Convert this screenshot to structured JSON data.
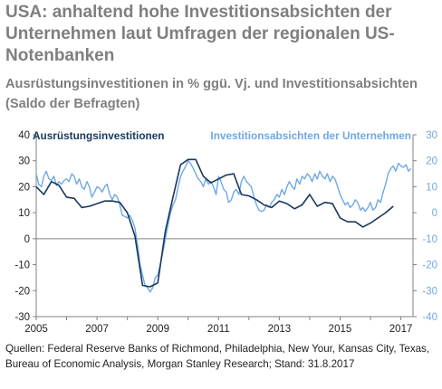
{
  "title": "USA: anhaltend hohe Investitionsabsichten der Unternehmen laut Umfragen der regionalen US-Notenbanken",
  "subtitle": "Ausrüstungsinvestitionen in % ggü. Vj. und Investitionsabsichten (Saldo der Befragten)",
  "source": "Quellen: Federal Reserve Banks of Richmond, Philadelphia, New Your, Kansas City, Texas, Bureau of Economic Analysis, Morgan Stanley Research; Stand: 31.8.2017",
  "colors": {
    "dark": "#17375e",
    "light": "#6fa8e4",
    "axis": "#808080"
  },
  "chart_data": {
    "type": "line",
    "x_ticks": [
      "2005",
      "2007",
      "2009",
      "2011",
      "2013",
      "2015",
      "2017"
    ],
    "y_left_ticks": [
      "40",
      "30",
      "20",
      "10",
      "0",
      "-10",
      "-20",
      "-30"
    ],
    "y_right_ticks": [
      "30",
      "20",
      "10",
      "0",
      "-10",
      "-20",
      "-30",
      "-40"
    ],
    "ylim_left": [
      -30,
      40
    ],
    "ylim_right": [
      -40,
      30
    ],
    "xlim": [
      2005,
      2017.4
    ],
    "series": [
      {
        "name": "Ausrüstungsinvestitionen",
        "axis": "left",
        "color": "#17375e",
        "points": [
          [
            2005.0,
            20
          ],
          [
            2005.25,
            17
          ],
          [
            2005.5,
            22
          ],
          [
            2005.75,
            20.5
          ],
          [
            2006.0,
            16
          ],
          [
            2006.25,
            15.5
          ],
          [
            2006.5,
            12
          ],
          [
            2006.75,
            12.5
          ],
          [
            2007.0,
            13.5
          ],
          [
            2007.25,
            14.5
          ],
          [
            2007.5,
            14.5
          ],
          [
            2007.75,
            14
          ],
          [
            2008.0,
            10
          ],
          [
            2008.25,
            1
          ],
          [
            2008.5,
            -18
          ],
          [
            2008.75,
            -18.5
          ],
          [
            2009.0,
            -17
          ],
          [
            2009.25,
            3
          ],
          [
            2009.5,
            16
          ],
          [
            2009.75,
            28.5
          ],
          [
            2010.0,
            30.5
          ],
          [
            2010.25,
            30.5
          ],
          [
            2010.5,
            24
          ],
          [
            2010.75,
            21.5
          ],
          [
            2011.0,
            23
          ],
          [
            2011.25,
            24.5
          ],
          [
            2011.5,
            25
          ],
          [
            2011.75,
            17
          ],
          [
            2012.0,
            16.5
          ],
          [
            2012.25,
            15
          ],
          [
            2012.5,
            13
          ],
          [
            2012.75,
            12
          ],
          [
            2013.0,
            14.5
          ],
          [
            2013.25,
            13.5
          ],
          [
            2013.5,
            11.5
          ],
          [
            2013.75,
            13
          ],
          [
            2014.0,
            17
          ],
          [
            2014.25,
            12.5
          ],
          [
            2014.5,
            14
          ],
          [
            2014.75,
            13.5
          ],
          [
            2015.0,
            8
          ],
          [
            2015.25,
            6.5
          ],
          [
            2015.5,
            6.5
          ],
          [
            2015.75,
            4.5
          ],
          [
            2016.0,
            6
          ],
          [
            2016.25,
            8
          ],
          [
            2016.5,
            10
          ],
          [
            2016.75,
            12.5
          ]
        ]
      },
      {
        "name": "Investitionsabsichten der Unternehmen",
        "axis": "right",
        "color": "#6fa8e4",
        "points": [
          [
            2005.0,
            15
          ],
          [
            2005.08,
            11
          ],
          [
            2005.17,
            10
          ],
          [
            2005.25,
            14
          ],
          [
            2005.33,
            16
          ],
          [
            2005.42,
            13
          ],
          [
            2005.5,
            12.5
          ],
          [
            2005.58,
            14
          ],
          [
            2005.67,
            10.5
          ],
          [
            2005.75,
            12
          ],
          [
            2005.83,
            11
          ],
          [
            2005.92,
            12.5
          ],
          [
            2006.0,
            13
          ],
          [
            2006.08,
            12
          ],
          [
            2006.17,
            15
          ],
          [
            2006.25,
            14
          ],
          [
            2006.33,
            11
          ],
          [
            2006.42,
            13
          ],
          [
            2006.5,
            10
          ],
          [
            2006.58,
            9
          ],
          [
            2006.67,
            12
          ],
          [
            2006.75,
            10
          ],
          [
            2006.83,
            6
          ],
          [
            2006.92,
            8
          ],
          [
            2007.0,
            10
          ],
          [
            2007.08,
            9.5
          ],
          [
            2007.17,
            8
          ],
          [
            2007.25,
            10
          ],
          [
            2007.33,
            11
          ],
          [
            2007.42,
            7
          ],
          [
            2007.5,
            5
          ],
          [
            2007.58,
            7
          ],
          [
            2007.67,
            6
          ],
          [
            2007.75,
            3
          ],
          [
            2007.83,
            -1
          ],
          [
            2007.92,
            -1.5
          ],
          [
            2008.0,
            -2
          ],
          [
            2008.08,
            -1
          ],
          [
            2008.17,
            -3
          ],
          [
            2008.25,
            -6
          ],
          [
            2008.33,
            -12
          ],
          [
            2008.42,
            -20
          ],
          [
            2008.5,
            -24
          ],
          [
            2008.58,
            -28
          ],
          [
            2008.67,
            -29
          ],
          [
            2008.75,
            -30.5
          ],
          [
            2008.83,
            -29
          ],
          [
            2008.92,
            -25
          ],
          [
            2009.0,
            -24
          ],
          [
            2009.08,
            -20
          ],
          [
            2009.17,
            -15
          ],
          [
            2009.25,
            -10
          ],
          [
            2009.33,
            -5
          ],
          [
            2009.42,
            0
          ],
          [
            2009.5,
            3
          ],
          [
            2009.58,
            5
          ],
          [
            2009.67,
            10
          ],
          [
            2009.75,
            14
          ],
          [
            2009.83,
            16
          ],
          [
            2009.92,
            18
          ],
          [
            2010.0,
            20
          ],
          [
            2010.08,
            19
          ],
          [
            2010.17,
            17
          ],
          [
            2010.25,
            15
          ],
          [
            2010.33,
            13
          ],
          [
            2010.42,
            12
          ],
          [
            2010.5,
            10
          ],
          [
            2010.58,
            13
          ],
          [
            2010.67,
            11
          ],
          [
            2010.75,
            12
          ],
          [
            2010.83,
            10
          ],
          [
            2010.92,
            7
          ],
          [
            2011.0,
            14
          ],
          [
            2011.08,
            12
          ],
          [
            2011.17,
            9
          ],
          [
            2011.25,
            8
          ],
          [
            2011.33,
            4
          ],
          [
            2011.42,
            5
          ],
          [
            2011.5,
            8
          ],
          [
            2011.58,
            9
          ],
          [
            2011.67,
            7
          ],
          [
            2011.75,
            12
          ],
          [
            2011.83,
            14
          ],
          [
            2011.92,
            12
          ],
          [
            2012.0,
            11
          ],
          [
            2012.08,
            10
          ],
          [
            2012.17,
            6
          ],
          [
            2012.25,
            3
          ],
          [
            2012.33,
            1
          ],
          [
            2012.42,
            0.5
          ],
          [
            2012.5,
            1
          ],
          [
            2012.58,
            3
          ],
          [
            2012.67,
            2
          ],
          [
            2012.75,
            4
          ],
          [
            2012.83,
            5
          ],
          [
            2012.92,
            7
          ],
          [
            2013.0,
            6
          ],
          [
            2013.08,
            9
          ],
          [
            2013.17,
            7
          ],
          [
            2013.25,
            10
          ],
          [
            2013.33,
            12
          ],
          [
            2013.42,
            10
          ],
          [
            2013.5,
            9
          ],
          [
            2013.58,
            13
          ],
          [
            2013.67,
            11
          ],
          [
            2013.75,
            14
          ],
          [
            2013.83,
            13
          ],
          [
            2013.92,
            15
          ],
          [
            2014.0,
            14
          ],
          [
            2014.08,
            12
          ],
          [
            2014.17,
            15
          ],
          [
            2014.25,
            13
          ],
          [
            2014.33,
            16
          ],
          [
            2014.42,
            14
          ],
          [
            2014.5,
            13
          ],
          [
            2014.58,
            15
          ],
          [
            2014.67,
            12
          ],
          [
            2014.75,
            14
          ],
          [
            2014.83,
            13
          ],
          [
            2014.92,
            10
          ],
          [
            2015.0,
            7
          ],
          [
            2015.08,
            5
          ],
          [
            2015.17,
            3
          ],
          [
            2015.25,
            4
          ],
          [
            2015.33,
            2
          ],
          [
            2015.42,
            3
          ],
          [
            2015.5,
            5
          ],
          [
            2015.58,
            4
          ],
          [
            2015.67,
            1
          ],
          [
            2015.75,
            2
          ],
          [
            2015.83,
            0.5
          ],
          [
            2015.92,
            2
          ],
          [
            2016.0,
            4
          ],
          [
            2016.08,
            1
          ],
          [
            2016.17,
            2
          ],
          [
            2016.25,
            5
          ],
          [
            2016.33,
            4
          ],
          [
            2016.42,
            8
          ],
          [
            2016.5,
            11
          ],
          [
            2016.58,
            15
          ],
          [
            2016.67,
            17
          ],
          [
            2016.75,
            18
          ],
          [
            2016.83,
            16
          ],
          [
            2016.92,
            19
          ],
          [
            2017.0,
            18
          ],
          [
            2017.08,
            17.5
          ],
          [
            2017.17,
            18.5
          ],
          [
            2017.25,
            16
          ],
          [
            2017.33,
            17
          ]
        ]
      }
    ]
  }
}
